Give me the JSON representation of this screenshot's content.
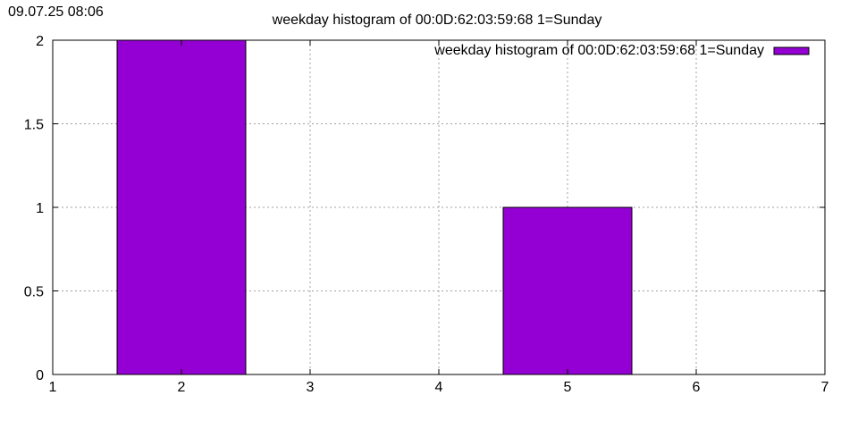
{
  "timestamp": "09.07.25 08:06",
  "chart_data": {
    "type": "bar",
    "title": "weekday histogram of 00:0D:62:03:59:68 1=Sunday",
    "xlabel": "",
    "ylabel": "",
    "xlim": [
      1,
      7
    ],
    "ylim": [
      0,
      2
    ],
    "x_ticks": [
      "1",
      "2",
      "3",
      "4",
      "5",
      "6",
      "7"
    ],
    "y_ticks": [
      "0",
      "0.5",
      "1",
      "1.5",
      "2"
    ],
    "grid": true,
    "legend_position": "top-right",
    "bar_color": "#9400d3",
    "series": [
      {
        "name": "weekday histogram of 00:0D:62:03:59:68 1=Sunday",
        "points": [
          {
            "x": 2,
            "value": 2
          },
          {
            "x": 5,
            "value": 1
          }
        ]
      }
    ]
  }
}
